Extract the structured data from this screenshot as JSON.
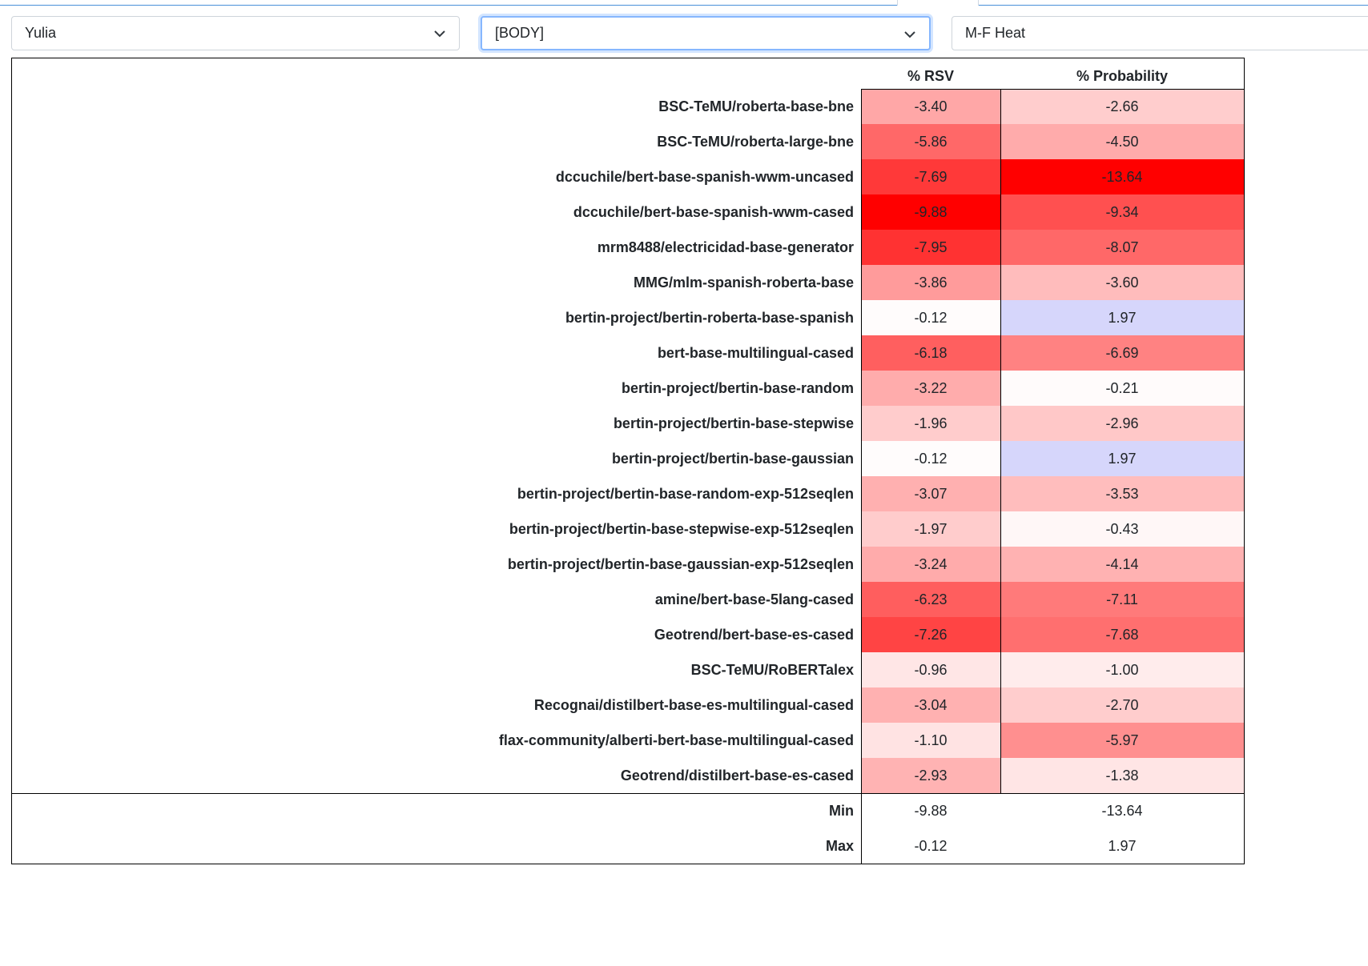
{
  "selects": [
    {
      "value": "Yulia"
    },
    {
      "value": "[BODY]"
    },
    {
      "value": "M-F Heat"
    }
  ],
  "table": {
    "headers": {
      "rsv": "% RSV",
      "prob": "% Probability"
    },
    "rows": [
      {
        "model": "BSC-TeMU/roberta-base-bne",
        "rsv": "-3.40",
        "prob": "-2.66"
      },
      {
        "model": "BSC-TeMU/roberta-large-bne",
        "rsv": "-5.86",
        "prob": "-4.50"
      },
      {
        "model": "dccuchile/bert-base-spanish-wwm-uncased",
        "rsv": "-7.69",
        "prob": "-13.64"
      },
      {
        "model": "dccuchile/bert-base-spanish-wwm-cased",
        "rsv": "-9.88",
        "prob": "-9.34"
      },
      {
        "model": "mrm8488/electricidad-base-generator",
        "rsv": "-7.95",
        "prob": "-8.07"
      },
      {
        "model": "MMG/mlm-spanish-roberta-base",
        "rsv": "-3.86",
        "prob": "-3.60"
      },
      {
        "model": "bertin-project/bertin-roberta-base-spanish",
        "rsv": "-0.12",
        "prob": "1.97"
      },
      {
        "model": "bert-base-multilingual-cased",
        "rsv": "-6.18",
        "prob": "-6.69"
      },
      {
        "model": "bertin-project/bertin-base-random",
        "rsv": "-3.22",
        "prob": "-0.21"
      },
      {
        "model": "bertin-project/bertin-base-stepwise",
        "rsv": "-1.96",
        "prob": "-2.96"
      },
      {
        "model": "bertin-project/bertin-base-gaussian",
        "rsv": "-0.12",
        "prob": "1.97"
      },
      {
        "model": "bertin-project/bertin-base-random-exp-512seqlen",
        "rsv": "-3.07",
        "prob": "-3.53"
      },
      {
        "model": "bertin-project/bertin-base-stepwise-exp-512seqlen",
        "rsv": "-1.97",
        "prob": "-0.43"
      },
      {
        "model": "bertin-project/bertin-base-gaussian-exp-512seqlen",
        "rsv": "-3.24",
        "prob": "-4.14"
      },
      {
        "model": "amine/bert-base-5lang-cased",
        "rsv": "-6.23",
        "prob": "-7.11"
      },
      {
        "model": "Geotrend/bert-base-es-cased",
        "rsv": "-7.26",
        "prob": "-7.68"
      },
      {
        "model": "BSC-TeMU/RoBERTalex",
        "rsv": "-0.96",
        "prob": "-1.00"
      },
      {
        "model": "Recognai/distilbert-base-es-multilingual-cased",
        "rsv": "-3.04",
        "prob": "-2.70"
      },
      {
        "model": "flax-community/alberti-bert-base-multilingual-cased",
        "rsv": "-1.10",
        "prob": "-5.97"
      },
      {
        "model": "Geotrend/distilbert-base-es-cased",
        "rsv": "-2.93",
        "prob": "-1.38"
      }
    ],
    "footer": [
      {
        "label": "Min",
        "rsv": "-9.88",
        "prob": "-13.64"
      },
      {
        "label": "Max",
        "rsv": "-0.12",
        "prob": "1.97"
      }
    ]
  },
  "colors": {
    "negative": "#ff0000",
    "positive": "#d6d6fb",
    "neutral": "#ffffff",
    "select_focus": "#86b7fe"
  }
}
